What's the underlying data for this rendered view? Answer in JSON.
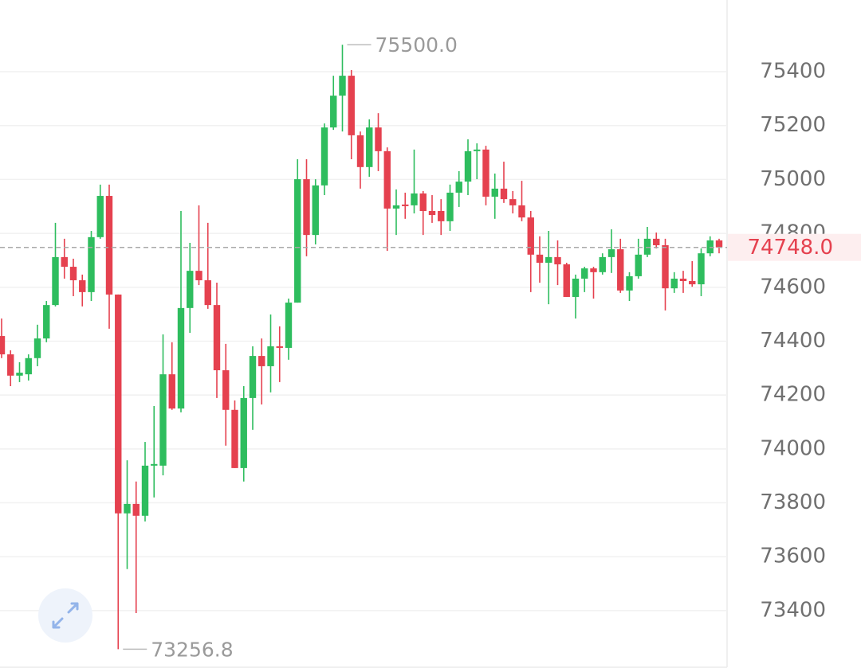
{
  "chart_data": {
    "type": "candlestick",
    "open": [
      74419,
      74351,
      74272,
      74277,
      74337,
      74410,
      74534,
      74712,
      74676,
      74626,
      74582,
      74786,
      74939,
      74573,
      73761,
      73796,
      73752,
      73938,
      73938,
      74277,
      74150,
      74523,
      74661,
      74626,
      74534,
      74292,
      74145,
      73929,
      74189,
      74345,
      74307,
      74381,
      74375,
      74543,
      75001,
      74794,
      74978,
      75193,
      75311,
      75385,
      75164,
      75046,
      75193,
      75105,
      74892,
      74907,
      74904,
      74948,
      74883,
      74883,
      74845,
      74951,
      74992,
      75105,
      75111,
      74936,
      74966,
      74927,
      74904,
      74859,
      74721,
      74691,
      74712,
      74685,
      74564,
      74632,
      74670,
      74656,
      74712,
      74741,
      74588,
      74641,
      74721,
      74780,
      74756,
      74596,
      74632,
      74623,
      74611,
      74726,
      74774
    ],
    "high": [
      74484,
      74366,
      74322,
      74351,
      74461,
      74549,
      74839,
      74780,
      74706,
      74647,
      74809,
      74981,
      74981,
      74573,
      73958,
      73879,
      74026,
      74159,
      74425,
      74396,
      74883,
      74765,
      74904,
      74839,
      74617,
      74390,
      74180,
      74233,
      74381,
      74410,
      74499,
      74455,
      74558,
      75075,
      75075,
      75001,
      75208,
      75385,
      75500,
      75406,
      75178,
      75223,
      75246,
      75119,
      74963,
      74951,
      75111,
      74957,
      74942,
      74927,
      74981,
      75031,
      75149,
      75134,
      75125,
      75022,
      75066,
      74957,
      74995,
      74883,
      74789,
      74809,
      74774,
      74691,
      74647,
      74676,
      74676,
      74726,
      74815,
      74780,
      74656,
      74780,
      74824,
      74803,
      74780,
      74656,
      74661,
      74697,
      74744,
      74789,
      74780
    ],
    "low": [
      74337,
      74233,
      74248,
      74254,
      74307,
      74396,
      74529,
      74632,
      74567,
      74529,
      74549,
      74780,
      74446,
      73256.8,
      73554,
      73391,
      73731,
      73820,
      73902,
      74145,
      74136,
      74431,
      74608,
      74520,
      74189,
      74012,
      73929,
      73879,
      74071,
      74165,
      74210,
      74248,
      74331,
      74543,
      74715,
      74759,
      74942,
      75184,
      75178,
      75075,
      74966,
      75010,
      75031,
      74735,
      74794,
      74854,
      74874,
      74794,
      74839,
      74794,
      74809,
      74898,
      74942,
      75001,
      74904,
      74854,
      74913,
      74874,
      74845,
      74582,
      74617,
      74537,
      74608,
      74564,
      74484,
      74582,
      74558,
      74647,
      74653,
      74579,
      74549,
      74632,
      74712,
      74744,
      74514,
      74579,
      74579,
      74602,
      74567,
      74715,
      74726
    ],
    "close": [
      74351,
      74272,
      74283,
      74337,
      74410,
      74534,
      74712,
      74676,
      74626,
      74582,
      74786,
      74939,
      74573,
      73761,
      73796,
      73752,
      73938,
      73944,
      74277,
      74150,
      74523,
      74661,
      74626,
      74534,
      74292,
      74145,
      73929,
      74189,
      74345,
      74307,
      74381,
      74375,
      74543,
      75001,
      74794,
      74978,
      75193,
      75311,
      75385,
      75164,
      75046,
      75193,
      75105,
      74892,
      74904,
      74901,
      74948,
      74883,
      74868,
      74845,
      74951,
      74992,
      75105,
      75111,
      74936,
      74966,
      74927,
      74904,
      74859,
      74721,
      74691,
      74712,
      74685,
      74564,
      74632,
      74670,
      74656,
      74712,
      74741,
      74588,
      74641,
      74721,
      74780,
      74756,
      74596,
      74632,
      74623,
      74611,
      74726,
      74774,
      74748
    ],
    "up_color": "#2ebd5e",
    "down_color": "#e5414f",
    "ylim": [
      73190,
      75666
    ],
    "yticks": [
      73400,
      73600,
      73800,
      74000,
      74200,
      74400,
      74600,
      74800,
      75000,
      75200,
      75400
    ],
    "grid": true,
    "annotations": [
      {
        "value": 75500,
        "label": "75500.0"
      },
      {
        "value": 73256.8,
        "label": "73256.8"
      }
    ],
    "last_price": {
      "value": 74748,
      "label": "74748.0"
    }
  }
}
